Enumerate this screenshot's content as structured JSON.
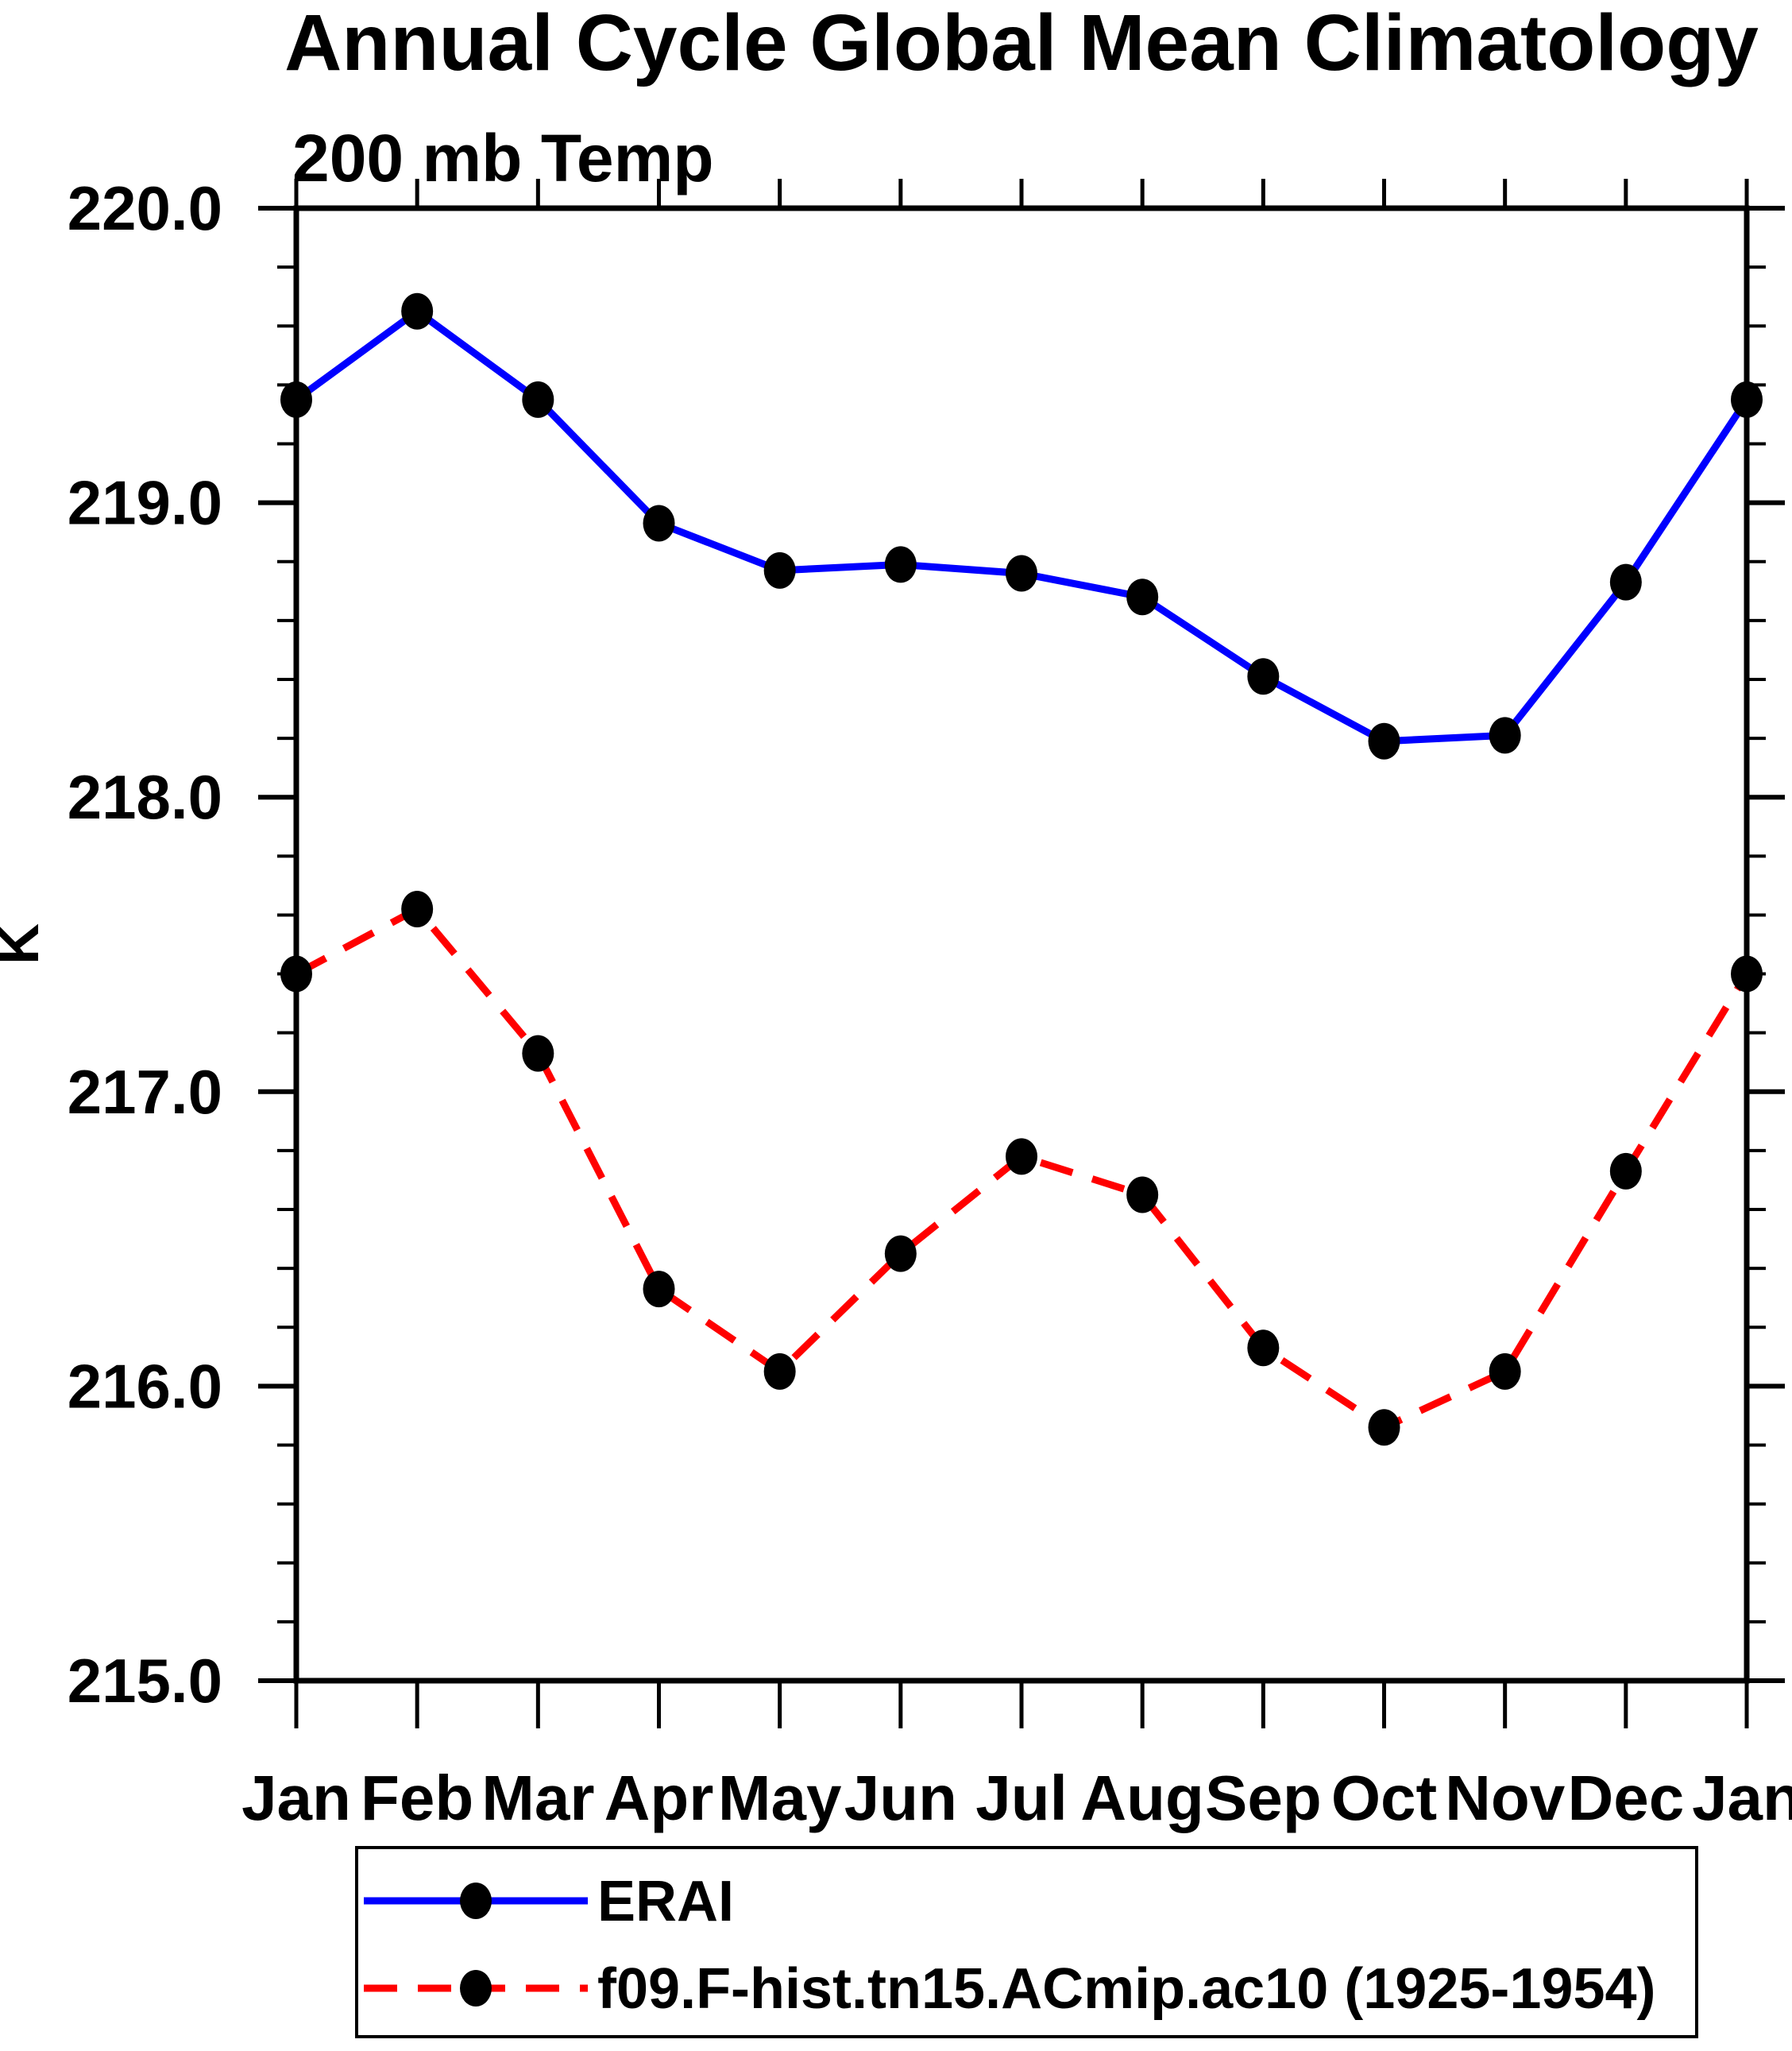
{
  "title": "Annual Cycle Global Mean Climatology",
  "subtitle": "200 mb Temp",
  "chart_data": {
    "type": "line",
    "title": "Annual Cycle Global Mean Climatology",
    "subtitle": "200 mb Temp",
    "xlabel": "",
    "ylabel": "K",
    "categories": [
      "Jan",
      "Feb",
      "Mar",
      "Apr",
      "May",
      "Jun",
      "Jul",
      "Aug",
      "Sep",
      "Oct",
      "Nov",
      "Dec",
      "Jan"
    ],
    "series": [
      {
        "name": "ERAI",
        "color": "#0000ff",
        "line_style": "solid",
        "marker": "filled-circle",
        "marker_color": "#000000",
        "values": [
          219.35,
          219.65,
          219.35,
          218.93,
          218.77,
          218.79,
          218.76,
          218.68,
          218.41,
          218.19,
          218.21,
          218.73,
          219.35
        ]
      },
      {
        "name": "f09.F-hist.tn15.ACmip.ac10 (1925-1954)",
        "color": "#ff0000",
        "line_style": "dashed",
        "marker": "filled-circle",
        "marker_color": "#000000",
        "values": [
          217.4,
          217.62,
          217.13,
          216.33,
          216.05,
          216.45,
          216.78,
          216.65,
          216.13,
          215.86,
          216.05,
          216.73,
          217.4
        ]
      }
    ],
    "ylim": [
      215.0,
      220.0
    ],
    "ytick_values": [
      220.0,
      219.0,
      218.0,
      217.0,
      216.0,
      215.0
    ],
    "ytick_labels": [
      "220.0",
      "219.0",
      "218.0",
      "217.0",
      "216.0",
      "215.0"
    ],
    "ytick_minor_step": 0.2,
    "grid": false,
    "legend_position": "bottom",
    "legend_entries": [
      "ERAI",
      "f09.F-hist.tn15.ACmip.ac10 (1925-1954)"
    ]
  },
  "colors": {
    "background": "#ffffff",
    "axis": "#000000",
    "erai_line": "#0000ff",
    "model_line": "#ff0000",
    "marker": "#000000"
  }
}
